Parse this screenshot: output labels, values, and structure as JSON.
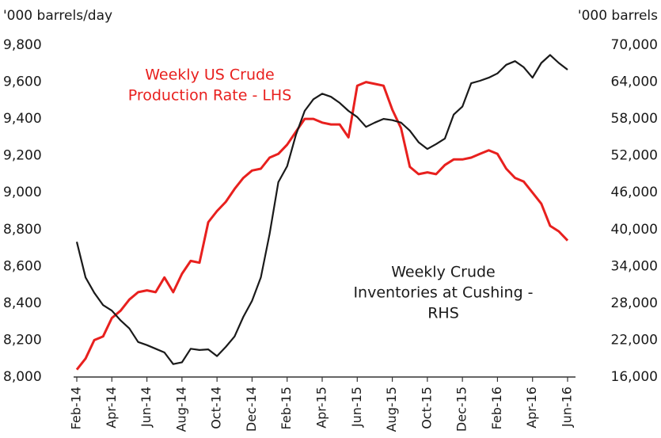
{
  "chart_data": {
    "type": "line",
    "y_label": "'000 barrels/day",
    "y2_label": "'000 barrels",
    "annotations": [
      {
        "lines": [
          "Weekly US Crude",
          "Production Rate - LHS"
        ],
        "color": "#e8201e"
      },
      {
        "lines": [
          "Weekly Crude",
          "Inventories at Cushing -",
          "RHS"
        ],
        "color": "#1a1a1a"
      }
    ],
    "categories": [
      "Feb-14",
      null,
      null,
      null,
      "Apr-14",
      null,
      null,
      null,
      "Jun-14",
      null,
      null,
      null,
      "Aug-14",
      null,
      null,
      null,
      "Oct-14",
      null,
      null,
      null,
      "Dec-14",
      null,
      null,
      null,
      "Feb-15",
      null,
      null,
      null,
      "Apr-15",
      null,
      null,
      null,
      "Jun-15",
      null,
      null,
      null,
      "Aug-15",
      null,
      null,
      null,
      "Oct-15",
      null,
      null,
      null,
      "Dec-15",
      null,
      null,
      null,
      "Feb-16",
      null,
      null,
      null,
      "Apr-16",
      null,
      null,
      null,
      "Jun-16"
    ],
    "series": [
      {
        "name": "Weekly US Crude Production Rate - LHS",
        "color": "#e8201e",
        "axis": "y",
        "values": [
          8040,
          8100,
          8200,
          8220,
          8320,
          8360,
          8420,
          8460,
          8470,
          8460,
          8540,
          8460,
          8560,
          8630,
          8620,
          8840,
          8900,
          8950,
          9020,
          9080,
          9120,
          9130,
          9190,
          9210,
          9260,
          9330,
          9400,
          9400,
          9380,
          9370,
          9370,
          9300,
          9580,
          9600,
          9590,
          9580,
          9450,
          9350,
          9140,
          9100,
          9110,
          9100,
          9150,
          9180,
          9180,
          9190,
          9210,
          9230,
          9210,
          9130,
          9080,
          9060,
          9000,
          8940,
          8820,
          8790,
          8740
        ]
      },
      {
        "name": "Weekly Crude Inventories at Cushing - RHS",
        "color": "#1a1a1a",
        "axis": "y2",
        "values": [
          38000,
          32200,
          29700,
          27700,
          26800,
          25200,
          23900,
          21700,
          21200,
          20600,
          20000,
          18100,
          18400,
          20600,
          20400,
          20500,
          19400,
          20900,
          22600,
          25800,
          28400,
          32200,
          39300,
          47700,
          50300,
          55400,
          59300,
          61200,
          62100,
          61600,
          60600,
          59300,
          58300,
          56700,
          57400,
          58000,
          57800,
          57400,
          56100,
          54200,
          53100,
          53900,
          54800,
          58700,
          60000,
          63800,
          64200,
          64700,
          65400,
          66800,
          67400,
          66400,
          64700,
          67100,
          68400,
          67100,
          66000
        ]
      }
    ],
    "ylim": [
      8000,
      9800
    ],
    "yticks": [
      {
        "value": 8000,
        "label": "8,000"
      },
      {
        "value": 8200,
        "label": "8,200"
      },
      {
        "value": 8400,
        "label": "8,400"
      },
      {
        "value": 8600,
        "label": "8,600"
      },
      {
        "value": 8800,
        "label": "8,800"
      },
      {
        "value": 9000,
        "label": "9,000"
      },
      {
        "value": 9200,
        "label": "9,200"
      },
      {
        "value": 9400,
        "label": "9,400"
      },
      {
        "value": 9600,
        "label": "9,600"
      },
      {
        "value": 9800,
        "label": "9,800"
      }
    ],
    "y2lim": [
      16000,
      70000
    ],
    "y2ticks": [
      {
        "value": 16000,
        "label": "16,000"
      },
      {
        "value": 22000,
        "label": "22,000"
      },
      {
        "value": 28000,
        "label": "28,000"
      },
      {
        "value": 34000,
        "label": "34,000"
      },
      {
        "value": 40000,
        "label": "40,000"
      },
      {
        "value": 46000,
        "label": "46,000"
      },
      {
        "value": 52000,
        "label": "52,000"
      },
      {
        "value": 58000,
        "label": "58,000"
      },
      {
        "value": 64000,
        "label": "64,000"
      },
      {
        "value": 70000,
        "label": "70,000"
      }
    ],
    "grid": false
  }
}
